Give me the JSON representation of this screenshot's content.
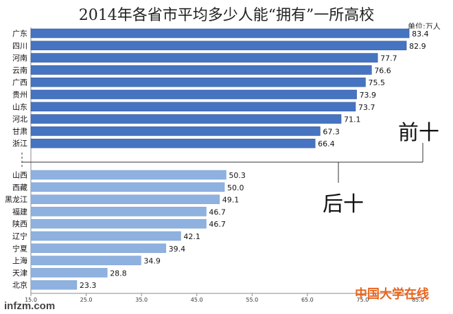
{
  "title": "2014年各省市平均多少人能“拥有”一所高校",
  "unit": "单位:万人",
  "group_labels": {
    "top": "前十",
    "bottom": "后十"
  },
  "watermarks": {
    "source": "infzm.com",
    "publisher": "中国大学在线"
  },
  "colors": {
    "top_bar": "#4674c1",
    "bottom_bar": "#8fb1e0",
    "label_bg": "#ffffff",
    "publisher": "#e8641c"
  },
  "chart_data": {
    "type": "bar",
    "orientation": "horizontal",
    "title": "2014年各省市平均多少人能“拥有”一所高校",
    "unit": "单位:万人",
    "xlim": [
      15.0,
      85.0
    ],
    "x_ticks": [
      "15.0",
      "25.0",
      "35.0",
      "45.0",
      "55.0",
      "65.0",
      "75.0",
      "85.0"
    ],
    "x_tick_values": [
      15,
      25,
      35,
      45,
      55,
      65,
      75,
      85
    ],
    "groups": [
      {
        "name": "前十",
        "categories": [
          "广东",
          "四川",
          "河南",
          "云南",
          "广西",
          "贵州",
          "山东",
          "河北",
          "甘肃",
          "浙江"
        ],
        "values": [
          83.4,
          82.9,
          77.7,
          76.6,
          75.5,
          73.9,
          73.7,
          71.1,
          67.3,
          66.4
        ],
        "labels": [
          "83.4",
          "82.9",
          "77.7",
          "76.6",
          "75.5",
          "73.9",
          "73.7",
          "71.1",
          "67.3",
          "66.4"
        ]
      },
      {
        "name": "后十",
        "categories": [
          "山西",
          "西藏",
          "黑龙江",
          "福建",
          "陕西",
          "辽宁",
          "宁夏",
          "上海",
          "天津",
          "北京"
        ],
        "values": [
          50.3,
          50.0,
          49.1,
          46.7,
          46.7,
          42.1,
          39.4,
          34.9,
          28.8,
          23.3
        ],
        "labels": [
          "50.3",
          "50.0",
          "49.1",
          "46.7",
          "46.7",
          "42.1",
          "39.4",
          "34.9",
          "28.8",
          "23.3"
        ]
      }
    ],
    "grid": false,
    "legend": "none"
  }
}
